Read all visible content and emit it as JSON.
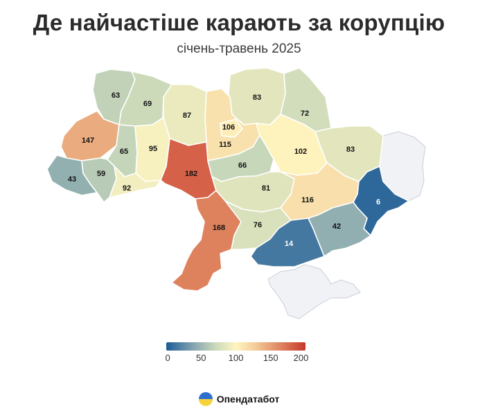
{
  "title": "Де найчастіше карають за корупцію",
  "subtitle": "січень-травень 2025",
  "legend": {
    "min": 0,
    "max": 200,
    "ticks": [
      "0",
      "50",
      "100",
      "150",
      "200"
    ]
  },
  "brand": {
    "name": "Опендатабот",
    "icon": "opendatabot-logo-icon"
  },
  "colors": {
    "scale": [
      "#1d5c96",
      "#7d9fae",
      "#c9d8ba",
      "#fff5c0",
      "#f2c895",
      "#df845f",
      "#c6382c"
    ],
    "no_data": "#f1f2f6"
  },
  "regions": [
    {
      "id": "volyn",
      "value": "63"
    },
    {
      "id": "rivne",
      "value": "69"
    },
    {
      "id": "zhytomyr",
      "value": "87"
    },
    {
      "id": "kyiv-city",
      "value": "106"
    },
    {
      "id": "kyiv-oblast",
      "value": "115"
    },
    {
      "id": "chernihiv",
      "value": "83"
    },
    {
      "id": "sumy",
      "value": "72"
    },
    {
      "id": "kharkiv",
      "value": "83"
    },
    {
      "id": "poltava",
      "value": "102"
    },
    {
      "id": "lviv",
      "value": "147"
    },
    {
      "id": "ternopil",
      "value": "65"
    },
    {
      "id": "khmelnytskyi",
      "value": "95"
    },
    {
      "id": "vinnytsia",
      "value": "182"
    },
    {
      "id": "cherkasy",
      "value": "66"
    },
    {
      "id": "zakarpattia",
      "value": "43"
    },
    {
      "id": "ivano-frankivsk",
      "value": "59"
    },
    {
      "id": "chernivtsi",
      "value": "92"
    },
    {
      "id": "kirovohrad",
      "value": "81"
    },
    {
      "id": "dnipropetrovsk",
      "value": "116"
    },
    {
      "id": "donetsk",
      "value": "6"
    },
    {
      "id": "odesa",
      "value": "168"
    },
    {
      "id": "mykolaiv",
      "value": "76"
    },
    {
      "id": "zaporizhzhia",
      "value": "42"
    },
    {
      "id": "kherson",
      "value": "14"
    }
  ]
}
